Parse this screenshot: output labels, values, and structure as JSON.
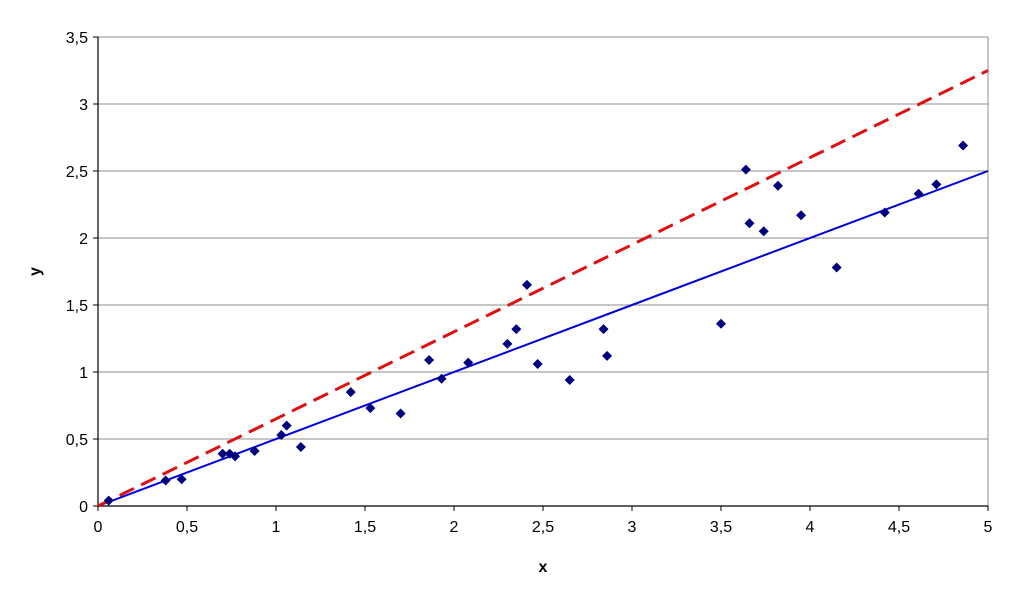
{
  "chart_data": {
    "type": "scatter",
    "title": "",
    "xlabel": "x",
    "ylabel": "y",
    "xlim": [
      0,
      5
    ],
    "ylim": [
      0,
      3.5
    ],
    "decimal_separator": ",",
    "x_ticks": [
      "0",
      "0,5",
      "1",
      "1,5",
      "2",
      "2,5",
      "3",
      "3,5",
      "4",
      "4,5",
      "5"
    ],
    "y_ticks": [
      "0",
      "0,5",
      "1",
      "1,5",
      "2",
      "2,5",
      "3",
      "3,5"
    ],
    "grid": "horizontal",
    "legend": "none",
    "series": [
      {
        "kind": "points",
        "marker": "diamond",
        "color": "#00007F",
        "points": [
          [
            0.06,
            0.04
          ],
          [
            0.38,
            0.19
          ],
          [
            0.47,
            0.2
          ],
          [
            0.7,
            0.39
          ],
          [
            0.74,
            0.39
          ],
          [
            0.77,
            0.37
          ],
          [
            0.88,
            0.41
          ],
          [
            1.03,
            0.53
          ],
          [
            1.06,
            0.6
          ],
          [
            1.14,
            0.44
          ],
          [
            1.42,
            0.85
          ],
          [
            1.53,
            0.73
          ],
          [
            1.7,
            0.69
          ],
          [
            1.86,
            1.09
          ],
          [
            1.93,
            0.95
          ],
          [
            2.08,
            1.07
          ],
          [
            2.3,
            1.21
          ],
          [
            2.35,
            1.32
          ],
          [
            2.41,
            1.65
          ],
          [
            2.47,
            1.06
          ],
          [
            2.65,
            0.94
          ],
          [
            2.84,
            1.32
          ],
          [
            2.86,
            1.12
          ],
          [
            3.5,
            1.36
          ],
          [
            3.64,
            2.51
          ],
          [
            3.66,
            2.11
          ],
          [
            3.74,
            2.05
          ],
          [
            3.82,
            2.39
          ],
          [
            3.95,
            2.17
          ],
          [
            4.15,
            1.78
          ],
          [
            4.42,
            2.19
          ],
          [
            4.61,
            2.33
          ],
          [
            4.71,
            2.4
          ],
          [
            4.86,
            2.69
          ]
        ]
      },
      {
        "kind": "line",
        "style": "solid",
        "color": "#0000DD",
        "points": [
          [
            0,
            0
          ],
          [
            5,
            2.5
          ]
        ]
      },
      {
        "kind": "line",
        "style": "dashed",
        "color": "#DD1111",
        "points": [
          [
            0,
            0
          ],
          [
            5,
            3.25
          ]
        ]
      }
    ]
  }
}
